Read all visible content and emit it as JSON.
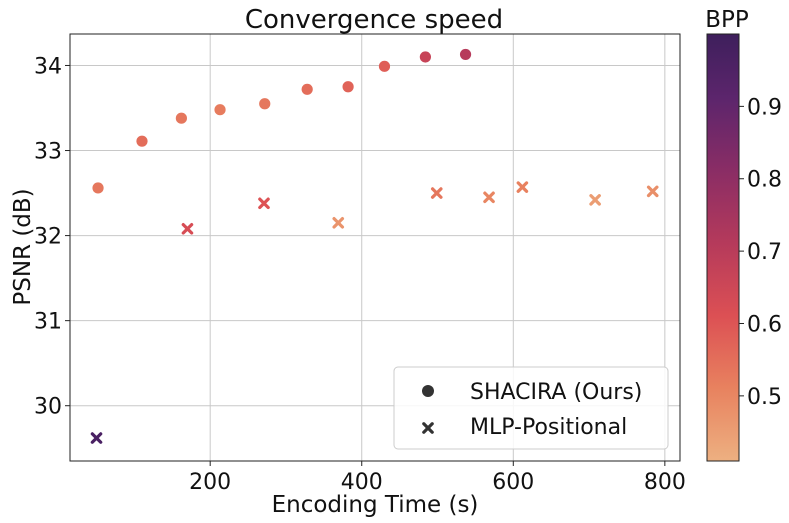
{
  "chart_data": {
    "type": "scatter",
    "title": "Convergence speed",
    "xlabel": "Encoding Time (s)",
    "ylabel": "PSNR (dB)",
    "xlim": [
      15,
      820
    ],
    "ylim": [
      29.35,
      34.37
    ],
    "xticks": [
      200,
      400,
      600,
      800
    ],
    "yticks": [
      30,
      31,
      32,
      33,
      34
    ],
    "grid": true,
    "legend": "bottom-right",
    "colorbar": {
      "label": "BPP",
      "range": [
        0.41,
        1.0
      ],
      "ticks": [
        0.5,
        0.6,
        0.7,
        0.8,
        0.9
      ],
      "colormap": [
        "#edb081",
        "#e8825f",
        "#dc5054",
        "#b53a5b",
        "#8a2d65",
        "#5c256c",
        "#3e1f5c"
      ]
    },
    "series": [
      {
        "name": "SHACIRA (Ours)",
        "marker": "circle",
        "points": [
          {
            "x": 52,
            "y": 32.56,
            "bpp": 0.53
          },
          {
            "x": 110,
            "y": 33.11,
            "bpp": 0.55
          },
          {
            "x": 162,
            "y": 33.38,
            "bpp": 0.53
          },
          {
            "x": 213,
            "y": 33.48,
            "bpp": 0.52
          },
          {
            "x": 272,
            "y": 33.55,
            "bpp": 0.53
          },
          {
            "x": 328,
            "y": 33.72,
            "bpp": 0.55
          },
          {
            "x": 382,
            "y": 33.75,
            "bpp": 0.57
          },
          {
            "x": 430,
            "y": 33.99,
            "bpp": 0.58
          },
          {
            "x": 484,
            "y": 34.1,
            "bpp": 0.66
          },
          {
            "x": 537,
            "y": 34.13,
            "bpp": 0.7
          }
        ]
      },
      {
        "name": "MLP-Positional",
        "marker": "x",
        "points": [
          {
            "x": 50,
            "y": 29.62,
            "bpp": 0.96
          },
          {
            "x": 170,
            "y": 32.08,
            "bpp": 0.62
          },
          {
            "x": 271,
            "y": 32.38,
            "bpp": 0.6
          },
          {
            "x": 369,
            "y": 32.15,
            "bpp": 0.47
          },
          {
            "x": 499,
            "y": 32.5,
            "bpp": 0.53
          },
          {
            "x": 568,
            "y": 32.45,
            "bpp": 0.5
          },
          {
            "x": 612,
            "y": 32.57,
            "bpp": 0.51
          },
          {
            "x": 708,
            "y": 32.42,
            "bpp": 0.45
          },
          {
            "x": 784,
            "y": 32.52,
            "bpp": 0.48
          }
        ]
      }
    ]
  },
  "legend": {
    "marker_color": "#333333"
  }
}
